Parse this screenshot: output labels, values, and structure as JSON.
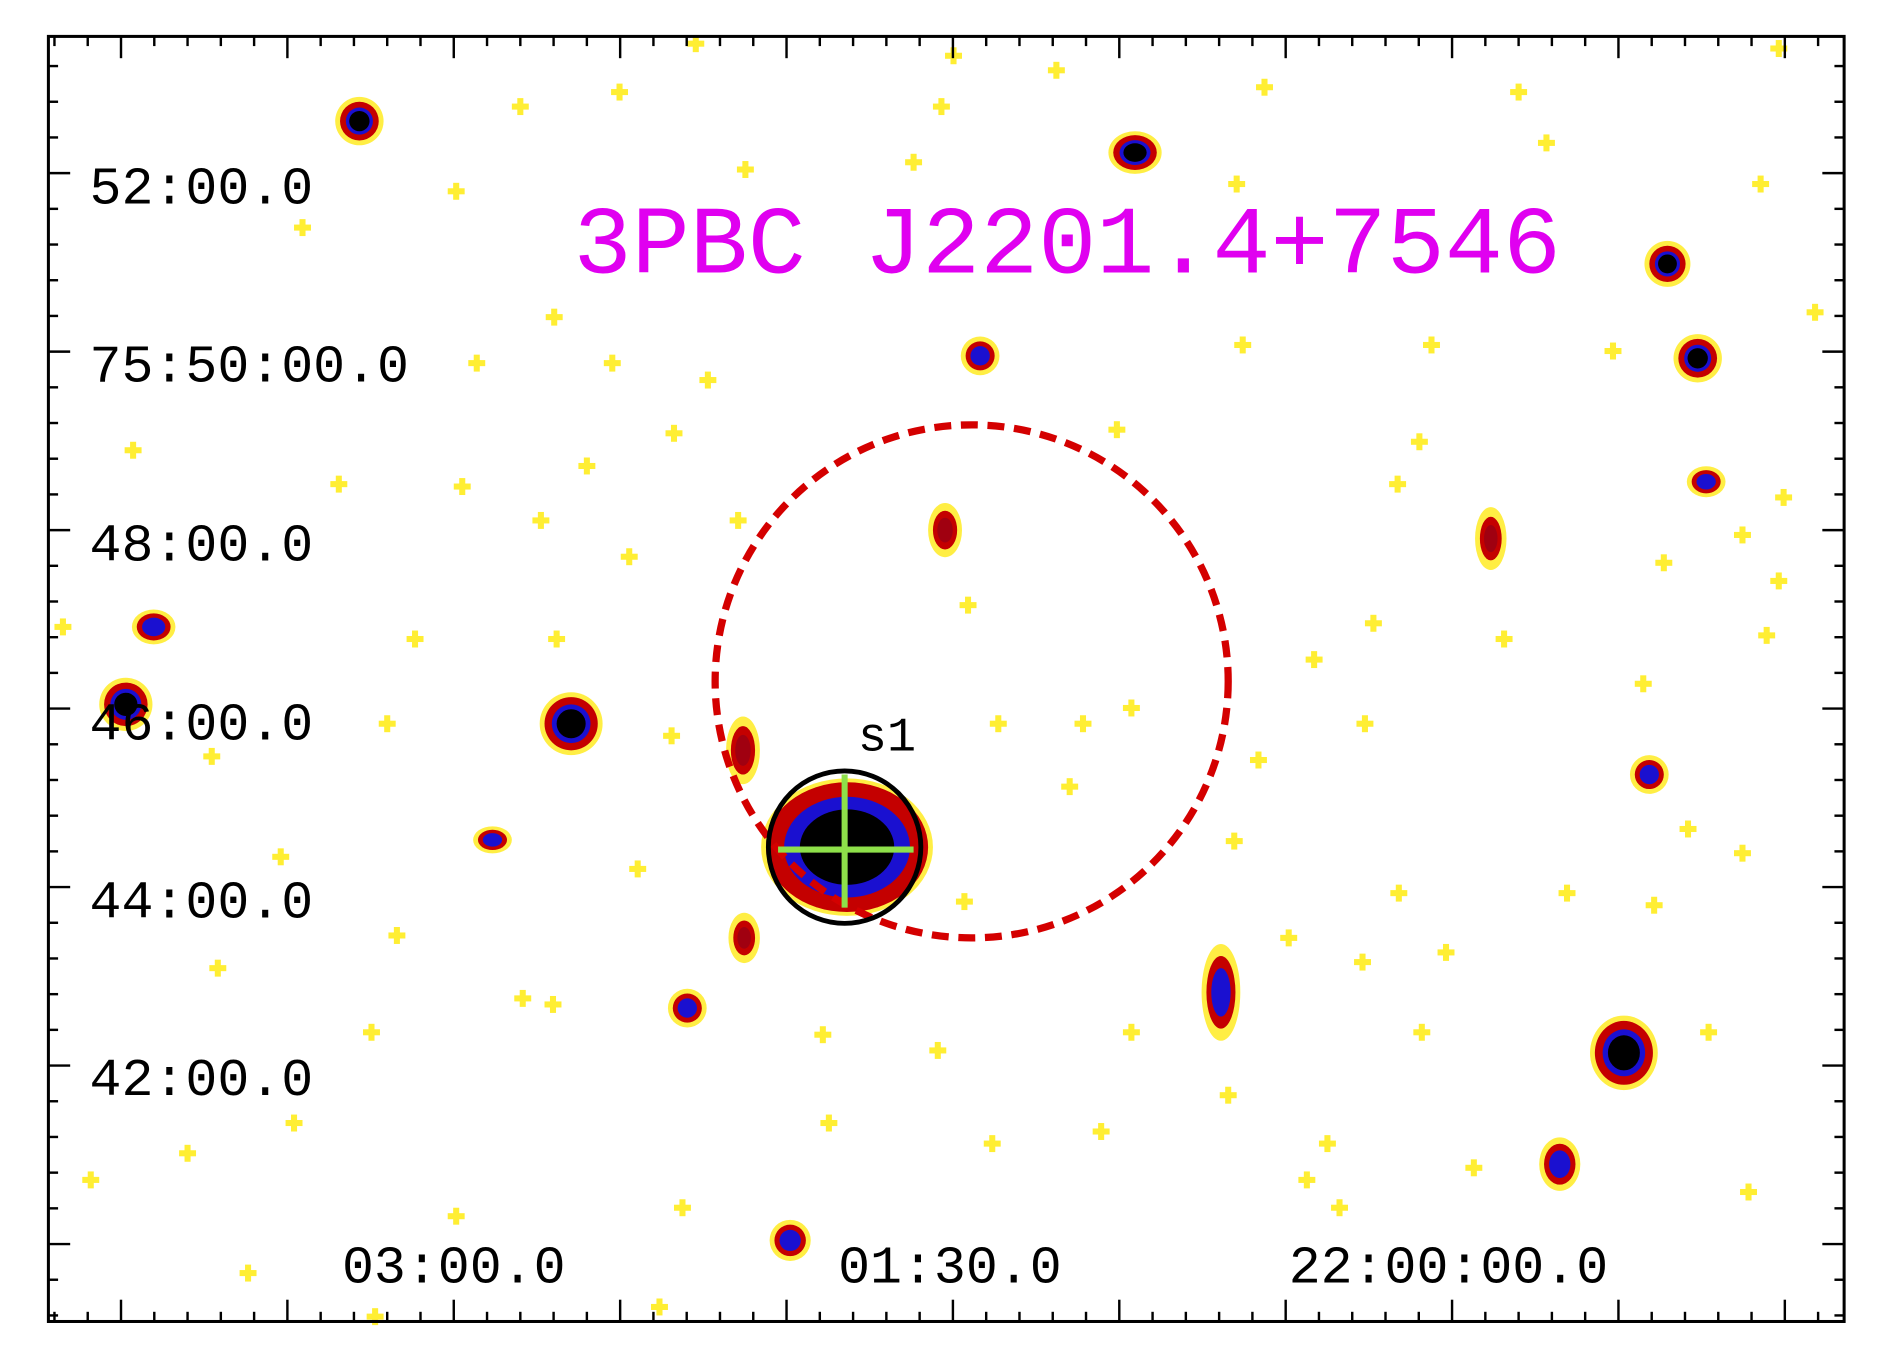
{
  "title": "3PBC J2201.4+7546",
  "y_axis_labels": [
    "52:00.0",
    "75:50:00.0",
    "48:00.0",
    "46:00.0",
    "44:00.0",
    "42:00.0"
  ],
  "x_axis_labels": [
    "03:00.0",
    "01:30.0",
    "22:00:00.0"
  ],
  "source_label": "s1"
}
